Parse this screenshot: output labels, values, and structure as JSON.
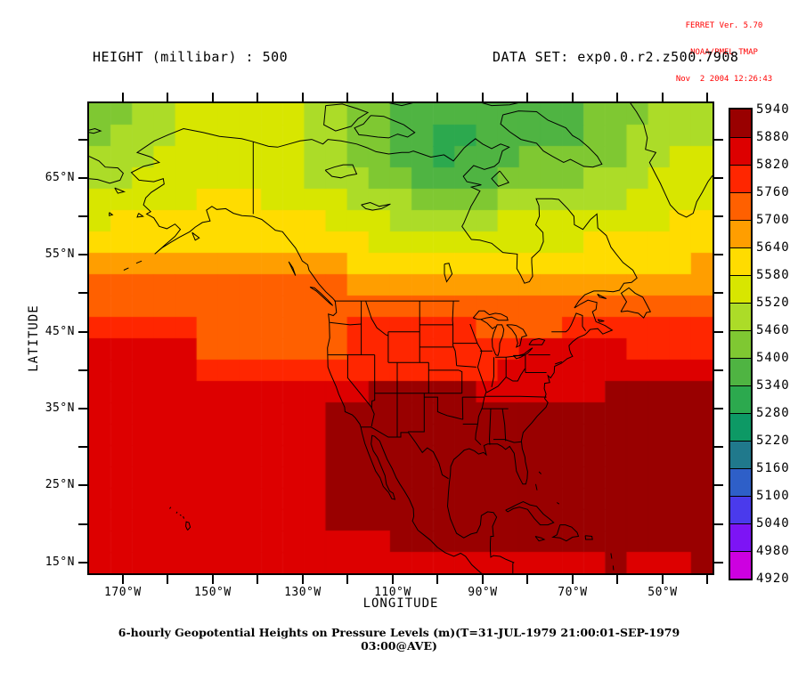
{
  "ferret_info": {
    "line1": "FERRET Ver. 5.70",
    "line2": "NOAA/PMEL TMAP",
    "line3": "Nov  2 2004 12:26:43",
    "text_color": "#FF0000"
  },
  "header": {
    "variable_label": "HEIGHT (millibar) : 500",
    "dataset_label": "DATA SET: exp0.0.r2.z500.7908"
  },
  "axes": {
    "x_label": "LONGITUDE",
    "y_label": "LATITUDE",
    "x_tick_labels": [
      "170°W",
      "150°W",
      "130°W",
      "110°W",
      "90°W",
      "70°W",
      "50°W"
    ],
    "y_tick_labels": [
      "65°N",
      "55°N",
      "45°N",
      "35°N",
      "25°N",
      "15°N"
    ]
  },
  "caption": "6-hourly Geopotential Heights on Pressure Levels (m)(T=31-JUL-1979 21:00:01-SEP-1979 03:00@AVE)",
  "chart_data": {
    "type": "heatmap",
    "title": "HEIGHT (millibar) : 500",
    "dataset": "exp0.0.r2.z500.7908",
    "units": "m",
    "xlabel": "LONGITUDE",
    "ylabel": "LATITUDE",
    "lon_range_deg_east": [
      -177.5,
      -38.9
    ],
    "lat_range_deg_north": [
      13.6,
      74.7
    ],
    "x_ticks_deg_east": [
      -170,
      -160,
      -150,
      -140,
      -130,
      -120,
      -110,
      -100,
      -90,
      -80,
      -70,
      -60,
      -50,
      -40
    ],
    "x_labeled_ticks_deg_east": [
      -170,
      -150,
      -130,
      -110,
      -90,
      -70,
      -50
    ],
    "y_ticks_deg_north": [
      70,
      65,
      60,
      55,
      50,
      45,
      40,
      35,
      30,
      25,
      20,
      15
    ],
    "y_labeled_ticks_deg_north": [
      65,
      55,
      45,
      35,
      25,
      15
    ],
    "legend_position": "right",
    "colorbar": {
      "levels": [
        4920,
        4980,
        5040,
        5100,
        5160,
        5220,
        5280,
        5340,
        5400,
        5460,
        5520,
        5580,
        5640,
        5700,
        5760,
        5820,
        5880,
        5940
      ],
      "colors_low_to_high": [
        "#cd00e0",
        "#7d14f5",
        "#4a3aec",
        "#2e5fc8",
        "#20798c",
        "#0d9965",
        "#2ca94e",
        "#4fb442",
        "#7fc832",
        "#acdc28",
        "#d8e600",
        "#ffdc00",
        "#ff9e00",
        "#ff6000",
        "#ff2600",
        "#dd0000",
        "#990000"
      ],
      "tick_labels_top_to_bottom": [
        "5940",
        "5880",
        "5820",
        "5760",
        "5700",
        "5640",
        "5580",
        "5520",
        "5460",
        "5400",
        "5340",
        "5280",
        "5220",
        "5160",
        "5100",
        "5040",
        "4980",
        "4920"
      ]
    },
    "grid": {
      "n_cols": 29,
      "n_rows": 22,
      "origin": "top-left (NW corner), rows north to south",
      "values": [
        [
          5430,
          5430,
          5490,
          5490,
          5550,
          5550,
          5550,
          5550,
          5550,
          5550,
          5490,
          5490,
          5430,
          5430,
          5370,
          5370,
          5370,
          5370,
          5370,
          5370,
          5370,
          5370,
          5370,
          5430,
          5430,
          5430,
          5490,
          5490,
          5490
        ],
        [
          5430,
          5490,
          5490,
          5490,
          5550,
          5550,
          5550,
          5550,
          5550,
          5550,
          5490,
          5490,
          5430,
          5430,
          5370,
          5370,
          5310,
          5310,
          5370,
          5370,
          5370,
          5370,
          5370,
          5430,
          5430,
          5490,
          5490,
          5490,
          5490
        ],
        [
          5490,
          5490,
          5490,
          5550,
          5550,
          5550,
          5550,
          5550,
          5550,
          5550,
          5490,
          5490,
          5430,
          5430,
          5370,
          5370,
          5310,
          5370,
          5370,
          5370,
          5430,
          5430,
          5430,
          5430,
          5430,
          5490,
          5490,
          5550,
          5550
        ],
        [
          5490,
          5490,
          5550,
          5550,
          5550,
          5550,
          5550,
          5550,
          5550,
          5550,
          5490,
          5490,
          5490,
          5430,
          5430,
          5370,
          5370,
          5370,
          5370,
          5430,
          5430,
          5430,
          5430,
          5490,
          5490,
          5490,
          5550,
          5550,
          5550
        ],
        [
          5550,
          5550,
          5550,
          5550,
          5550,
          5610,
          5610,
          5610,
          5550,
          5550,
          5550,
          5550,
          5490,
          5490,
          5490,
          5430,
          5430,
          5430,
          5430,
          5490,
          5490,
          5490,
          5490,
          5490,
          5490,
          5550,
          5550,
          5550,
          5550
        ],
        [
          5550,
          5610,
          5610,
          5610,
          5610,
          5610,
          5610,
          5610,
          5610,
          5610,
          5610,
          5550,
          5550,
          5550,
          5490,
          5490,
          5490,
          5490,
          5490,
          5550,
          5550,
          5550,
          5550,
          5550,
          5550,
          5550,
          5550,
          5610,
          5610
        ],
        [
          5610,
          5610,
          5610,
          5610,
          5610,
          5610,
          5610,
          5610,
          5610,
          5610,
          5610,
          5610,
          5610,
          5550,
          5550,
          5550,
          5550,
          5550,
          5550,
          5550,
          5550,
          5550,
          5550,
          5610,
          5610,
          5610,
          5610,
          5610,
          5610
        ],
        [
          5670,
          5670,
          5670,
          5670,
          5670,
          5670,
          5670,
          5670,
          5670,
          5670,
          5670,
          5670,
          5610,
          5610,
          5610,
          5610,
          5610,
          5610,
          5610,
          5610,
          5610,
          5610,
          5610,
          5610,
          5610,
          5610,
          5610,
          5610,
          5670
        ],
        [
          5730,
          5730,
          5730,
          5730,
          5730,
          5730,
          5730,
          5730,
          5730,
          5730,
          5730,
          5730,
          5670,
          5670,
          5670,
          5670,
          5670,
          5670,
          5670,
          5670,
          5670,
          5670,
          5670,
          5670,
          5670,
          5670,
          5670,
          5670,
          5670
        ],
        [
          5730,
          5730,
          5730,
          5730,
          5730,
          5730,
          5730,
          5730,
          5730,
          5730,
          5730,
          5730,
          5730,
          5730,
          5730,
          5730,
          5730,
          5730,
          5730,
          5730,
          5730,
          5730,
          5730,
          5730,
          5730,
          5730,
          5730,
          5730,
          5730
        ],
        [
          5790,
          5790,
          5790,
          5790,
          5790,
          5730,
          5730,
          5730,
          5730,
          5730,
          5730,
          5730,
          5790,
          5790,
          5790,
          5790,
          5790,
          5790,
          5730,
          5730,
          5730,
          5730,
          5790,
          5790,
          5790,
          5790,
          5790,
          5790,
          5790
        ],
        [
          5850,
          5850,
          5850,
          5850,
          5850,
          5730,
          5730,
          5730,
          5730,
          5730,
          5730,
          5730,
          5790,
          5790,
          5790,
          5790,
          5790,
          5790,
          5790,
          5790,
          5850,
          5850,
          5850,
          5850,
          5850,
          5790,
          5790,
          5790,
          5790
        ],
        [
          5850,
          5850,
          5850,
          5850,
          5850,
          5790,
          5790,
          5790,
          5790,
          5790,
          5790,
          5790,
          5790,
          5790,
          5790,
          5790,
          5790,
          5790,
          5790,
          5850,
          5850,
          5850,
          5850,
          5850,
          5850,
          5850,
          5850,
          5850,
          5850
        ],
        [
          5850,
          5850,
          5850,
          5850,
          5850,
          5850,
          5850,
          5850,
          5850,
          5850,
          5850,
          5850,
          5850,
          5910,
          5910,
          5910,
          5910,
          5910,
          5850,
          5850,
          5850,
          5850,
          5850,
          5850,
          5910,
          5910,
          5910,
          5910,
          5910
        ],
        [
          5850,
          5850,
          5850,
          5850,
          5850,
          5850,
          5850,
          5850,
          5850,
          5850,
          5850,
          5910,
          5910,
          5910,
          5910,
          5910,
          5910,
          5910,
          5910,
          5910,
          5910,
          5910,
          5910,
          5910,
          5910,
          5910,
          5910,
          5910,
          5910
        ],
        [
          5850,
          5850,
          5850,
          5850,
          5850,
          5850,
          5850,
          5850,
          5850,
          5850,
          5850,
          5910,
          5910,
          5910,
          5910,
          5910,
          5910,
          5910,
          5910,
          5910,
          5910,
          5910,
          5910,
          5910,
          5910,
          5910,
          5910,
          5910,
          5910
        ],
        [
          5850,
          5850,
          5850,
          5850,
          5850,
          5850,
          5850,
          5850,
          5850,
          5850,
          5850,
          5910,
          5910,
          5910,
          5910,
          5910,
          5910,
          5910,
          5910,
          5910,
          5910,
          5910,
          5910,
          5910,
          5910,
          5910,
          5910,
          5910,
          5910
        ],
        [
          5850,
          5850,
          5850,
          5850,
          5850,
          5850,
          5850,
          5850,
          5850,
          5850,
          5850,
          5910,
          5910,
          5910,
          5910,
          5910,
          5910,
          5910,
          5910,
          5910,
          5910,
          5910,
          5910,
          5910,
          5910,
          5910,
          5910,
          5910,
          5910
        ],
        [
          5850,
          5850,
          5850,
          5850,
          5850,
          5850,
          5850,
          5850,
          5850,
          5850,
          5850,
          5910,
          5910,
          5910,
          5910,
          5910,
          5910,
          5910,
          5910,
          5910,
          5910,
          5910,
          5910,
          5910,
          5910,
          5910,
          5910,
          5910,
          5910
        ],
        [
          5850,
          5850,
          5850,
          5850,
          5850,
          5850,
          5850,
          5850,
          5850,
          5850,
          5850,
          5910,
          5910,
          5910,
          5910,
          5910,
          5910,
          5910,
          5910,
          5910,
          5910,
          5910,
          5910,
          5910,
          5910,
          5910,
          5910,
          5910,
          5910
        ],
        [
          5850,
          5850,
          5850,
          5850,
          5850,
          5850,
          5850,
          5850,
          5850,
          5850,
          5850,
          5850,
          5850,
          5850,
          5910,
          5910,
          5910,
          5910,
          5910,
          5910,
          5910,
          5910,
          5910,
          5910,
          5910,
          5910,
          5910,
          5910,
          5910
        ],
        [
          5850,
          5850,
          5850,
          5850,
          5850,
          5850,
          5850,
          5850,
          5850,
          5850,
          5850,
          5850,
          5850,
          5850,
          5850,
          5850,
          5850,
          5850,
          5850,
          5850,
          5850,
          5850,
          5850,
          5850,
          5910,
          5850,
          5850,
          5850,
          5910
        ]
      ]
    }
  }
}
